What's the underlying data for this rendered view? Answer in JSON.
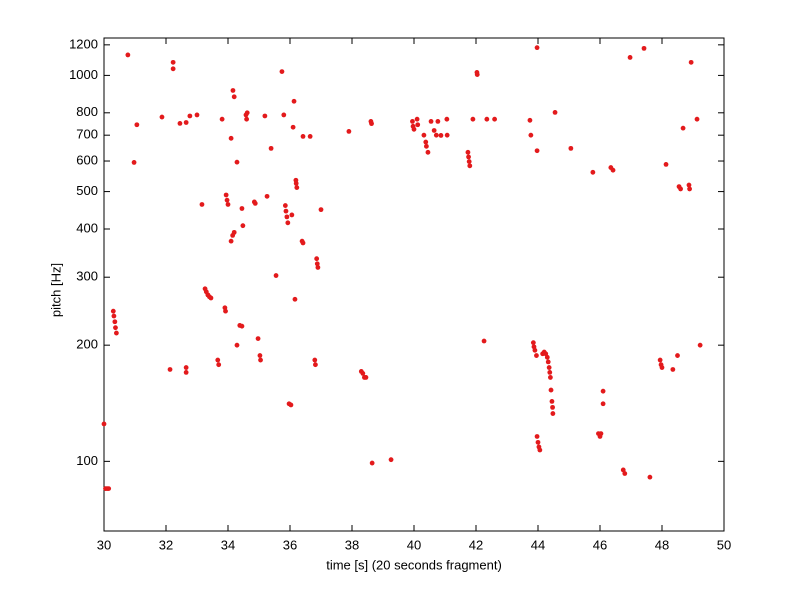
{
  "chart_data": {
    "type": "scatter",
    "x_label": "time [s] (20 seconds fragment)",
    "y_label": "pitch [Hz]",
    "color": "#e31a1c",
    "ylog": true,
    "xlim": [
      30,
      50
    ],
    "xticks": [
      30,
      32,
      34,
      36,
      38,
      40,
      42,
      44,
      46,
      48,
      50
    ],
    "ylim": [
      66,
      1250
    ],
    "yticks": [
      100,
      200,
      300,
      400,
      500,
      600,
      700,
      800,
      1000,
      1200
    ],
    "x": [
      30.0,
      30.05,
      30.1,
      30.15,
      30.3,
      30.32,
      30.35,
      30.37,
      30.4,
      30.77,
      30.97,
      31.06,
      31.87,
      32.13,
      32.23,
      32.23,
      32.45,
      32.65,
      32.77,
      33.0,
      32.65,
      32.65,
      33.16,
      33.26,
      33.3,
      33.35,
      33.4,
      33.45,
      33.67,
      33.7,
      33.81,
      33.94,
      33.97,
      34.0,
      33.9,
      33.92,
      34.1,
      34.16,
      34.2,
      34.1,
      34.15,
      34.2,
      34.29,
      34.29,
      34.38,
      34.45,
      34.45,
      34.48,
      34.58,
      34.6,
      34.62,
      34.85,
      34.88,
      34.97,
      35.03,
      35.05,
      35.19,
      35.26,
      35.39,
      35.55,
      35.74,
      35.8,
      35.85,
      35.87,
      35.9,
      35.93,
      35.97,
      36.03,
      36.06,
      36.13,
      36.16,
      36.19,
      36.2,
      36.22,
      36.1,
      36.39,
      36.42,
      36.42,
      36.65,
      36.8,
      36.82,
      36.86,
      36.88,
      36.9,
      37.0,
      37.9,
      38.3,
      38.35,
      38.4,
      38.45,
      38.61,
      38.63,
      38.65,
      39.26,
      39.95,
      39.97,
      40.0,
      40.1,
      40.12,
      40.32,
      40.38,
      40.4,
      40.45,
      40.55,
      40.65,
      40.72,
      40.77,
      40.87,
      41.06,
      41.07,
      41.74,
      41.76,
      41.78,
      41.8,
      41.9,
      42.03,
      42.04,
      42.26,
      42.35,
      42.6,
      43.74,
      43.77,
      43.85,
      43.87,
      43.9,
      43.95,
      43.97,
      43.97,
      43.97,
      44.0,
      44.03,
      44.06,
      44.15,
      44.2,
      44.25,
      44.3,
      44.33,
      44.36,
      44.38,
      44.4,
      44.42,
      44.45,
      44.47,
      44.48,
      44.55,
      45.06,
      45.77,
      45.95,
      46.0,
      46.03,
      46.1,
      46.1,
      46.35,
      46.42,
      46.75,
      46.8,
      46.97,
      47.42,
      47.61,
      47.94,
      47.97,
      48.0,
      48.13,
      48.35,
      48.5,
      48.55,
      48.6,
      48.68,
      48.87,
      48.89,
      48.94,
      49.13,
      49.23
    ],
    "values": [
      125,
      85,
      85,
      85,
      245,
      238,
      230,
      222,
      215,
      1130,
      595,
      745,
      780,
      173,
      1081,
      1040,
      751,
      755,
      785,
      790,
      175,
      170,
      463,
      280,
      275,
      270,
      267,
      265,
      183,
      178,
      770,
      490,
      475,
      463,
      250,
      245,
      687,
      914,
      880,
      372,
      385,
      392,
      596,
      200,
      225,
      224,
      452,
      408,
      790,
      770,
      800,
      470,
      466,
      208,
      188,
      183,
      785,
      486,
      647,
      303,
      1023,
      790,
      460,
      445,
      430,
      415,
      141,
      140,
      435,
      857,
      263,
      535,
      525,
      512,
      734,
      372,
      368,
      695,
      695,
      183,
      178,
      335,
      325,
      318,
      449,
      716,
      171,
      169,
      165,
      165,
      760,
      750,
      99,
      101,
      760,
      738,
      725,
      770,
      745,
      700,
      672,
      655,
      632,
      760,
      720,
      700,
      760,
      699,
      770,
      700,
      632,
      615,
      598,
      583,
      770,
      1018,
      1005,
      205,
      770,
      770,
      765,
      700,
      203,
      198,
      194,
      188,
      1180,
      638,
      116,
      112,
      109,
      107,
      190,
      192,
      190,
      186,
      181,
      175,
      170,
      165,
      153,
      143,
      138,
      133,
      802,
      647,
      561,
      118,
      116,
      118,
      152,
      141,
      577,
      568,
      95,
      93,
      1113,
      1175,
      91,
      183,
      178,
      175,
      588,
      173,
      188,
      515,
      508,
      730,
      520,
      508,
      1081,
      770,
      200
    ]
  }
}
